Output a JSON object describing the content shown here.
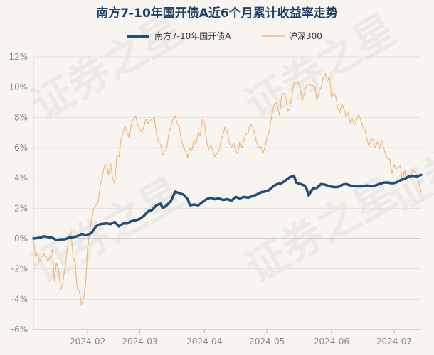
{
  "chart_data": {
    "type": "line",
    "title": "南方7-10年国开债A近6个月累计收益率走势",
    "watermark": "证券之星",
    "xlabel": "",
    "ylabel": "",
    "ylim": [
      -6,
      12
    ],
    "yticks": [
      -6,
      -4,
      -2,
      0,
      2,
      4,
      6,
      8,
      10,
      12
    ],
    "ytick_labels": [
      "-6%",
      "-4%",
      "-2%",
      "0%",
      "2%",
      "4%",
      "6%",
      "8%",
      "10%",
      "12%"
    ],
    "xlim": [
      0,
      186
    ],
    "xticks": [
      {
        "label": "2024-02",
        "day": 26
      },
      {
        "label": "2024-03",
        "day": 51
      },
      {
        "label": "2024-04",
        "day": 82
      },
      {
        "label": "2024-05",
        "day": 112
      },
      {
        "label": "2024-06",
        "day": 143
      },
      {
        "label": "2024-07",
        "day": 173
      }
    ],
    "legend_position": "top",
    "grid": "horizontal",
    "series": [
      {
        "name": "南方7-10年国开债A",
        "color": "#1f4e79",
        "width": 3.5,
        "points": [
          [
            0,
            0
          ],
          [
            3,
            0.05
          ],
          [
            5,
            0.15
          ],
          [
            7,
            0.1
          ],
          [
            9,
            0.05
          ],
          [
            11,
            -0.1
          ],
          [
            13,
            -0.05
          ],
          [
            15,
            -0.05
          ],
          [
            17,
            0.05
          ],
          [
            19,
            0.1
          ],
          [
            21,
            0.15
          ],
          [
            23,
            0.3
          ],
          [
            25,
            0.25
          ],
          [
            27,
            0.3
          ],
          [
            28,
            0.4
          ],
          [
            30,
            0.8
          ],
          [
            32,
            0.95
          ],
          [
            35,
            1.0
          ],
          [
            37,
            0.95
          ],
          [
            39,
            1.1
          ],
          [
            41,
            0.8
          ],
          [
            43,
            1.0
          ],
          [
            45,
            1.0
          ],
          [
            47,
            1.15
          ],
          [
            49,
            1.2
          ],
          [
            51,
            1.3
          ],
          [
            53,
            1.5
          ],
          [
            55,
            1.8
          ],
          [
            57,
            1.9
          ],
          [
            59,
            2.2
          ],
          [
            61,
            2.3
          ],
          [
            62,
            2.0
          ],
          [
            64,
            2.2
          ],
          [
            66,
            2.5
          ],
          [
            68,
            3.1
          ],
          [
            70,
            3.0
          ],
          [
            72,
            2.9
          ],
          [
            74,
            2.6
          ],
          [
            75,
            2.2
          ],
          [
            77,
            2.25
          ],
          [
            79,
            2.2
          ],
          [
            81,
            2.4
          ],
          [
            83,
            2.6
          ],
          [
            85,
            2.7
          ],
          [
            87,
            2.6
          ],
          [
            89,
            2.65
          ],
          [
            91,
            2.55
          ],
          [
            93,
            2.6
          ],
          [
            95,
            2.5
          ],
          [
            97,
            2.75
          ],
          [
            99,
            2.65
          ],
          [
            101,
            2.75
          ],
          [
            103,
            2.7
          ],
          [
            105,
            2.8
          ],
          [
            107,
            2.9
          ],
          [
            109,
            3.05
          ],
          [
            111,
            3.1
          ],
          [
            113,
            3.2
          ],
          [
            115,
            3.45
          ],
          [
            117,
            3.6
          ],
          [
            119,
            3.65
          ],
          [
            121,
            3.85
          ],
          [
            123,
            4.05
          ],
          [
            125,
            4.15
          ],
          [
            126,
            3.7
          ],
          [
            128,
            3.6
          ],
          [
            130,
            3.5
          ],
          [
            131,
            3.3
          ],
          [
            132,
            2.85
          ],
          [
            134,
            3.3
          ],
          [
            136,
            3.35
          ],
          [
            138,
            3.6
          ],
          [
            140,
            3.55
          ],
          [
            142,
            3.45
          ],
          [
            144,
            3.4
          ],
          [
            146,
            3.4
          ],
          [
            148,
            3.55
          ],
          [
            150,
            3.6
          ],
          [
            152,
            3.5
          ],
          [
            154,
            3.45
          ],
          [
            156,
            3.45
          ],
          [
            158,
            3.45
          ],
          [
            160,
            3.5
          ],
          [
            162,
            3.45
          ],
          [
            164,
            3.5
          ],
          [
            166,
            3.6
          ],
          [
            168,
            3.7
          ],
          [
            170,
            3.7
          ],
          [
            172,
            3.65
          ],
          [
            174,
            3.7
          ],
          [
            176,
            3.85
          ],
          [
            178,
            3.95
          ],
          [
            180,
            4.1
          ],
          [
            182,
            4.15
          ],
          [
            184,
            4.1
          ],
          [
            186,
            4.2
          ]
        ]
      },
      {
        "name": "沪深300",
        "color": "#f3b67e",
        "width": 1.2,
        "points": []
      }
    ]
  }
}
